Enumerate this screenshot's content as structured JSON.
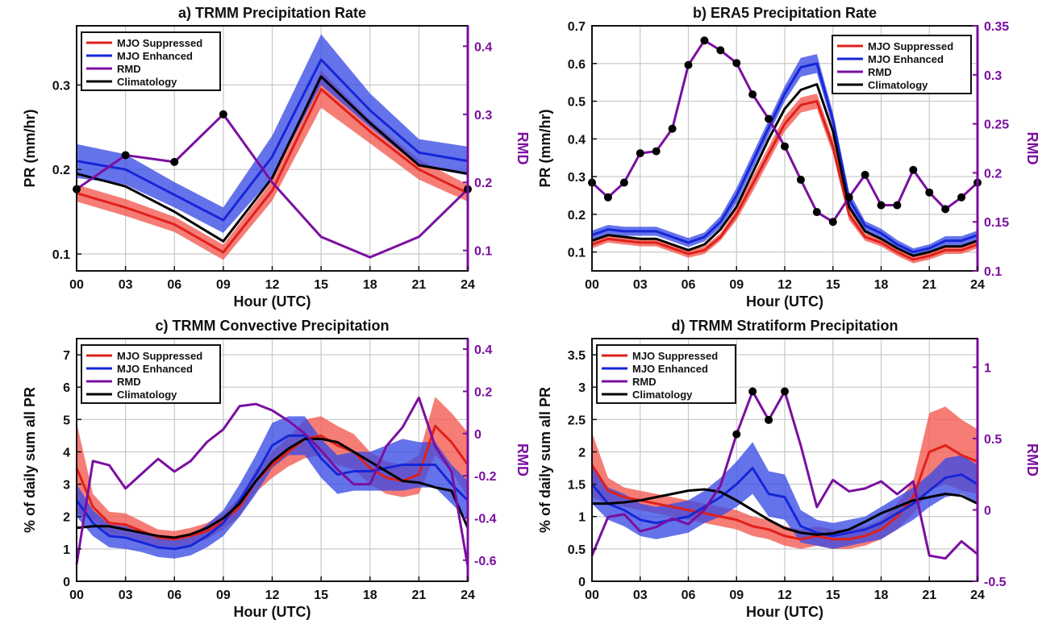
{
  "colors": {
    "suppressed": "#e0201a",
    "suppressed_band": "#f2584f",
    "enhanced": "#1626d6",
    "enhanced_band": "#3a4be6",
    "rmd": "#7b0fa0",
    "climatology": "#000000",
    "grid": "#c8c8c8"
  },
  "chart_data": [
    {
      "id": "a",
      "type": "line",
      "title": "a) TRMM Precipitation Rate",
      "xlabel": "Hour (UTC)",
      "ylabel": "PR (mm/hr)",
      "ylabel_right": "RMD",
      "xlim": [
        0,
        24
      ],
      "ylim": [
        0.08,
        0.37
      ],
      "ylim_right": [
        0.07,
        0.43
      ],
      "xticks": [
        0,
        3,
        6,
        9,
        12,
        15,
        18,
        21,
        24
      ],
      "xticklabels": [
        "00",
        "03",
        "06",
        "09",
        "12",
        "15",
        "18",
        "21",
        "24"
      ],
      "yticks": [
        0.1,
        0.2,
        0.3
      ],
      "yticklabels": [
        "0.1",
        "0.2",
        "0.3"
      ],
      "yticks_right": [
        0.1,
        0.2,
        0.3,
        0.4
      ],
      "yticklabels_right": [
        "0.1",
        "0.2",
        "0.3",
        "0.4"
      ],
      "legend": [
        "MJO Suppressed",
        "MJO Enhanced",
        "RMD",
        "Climatology"
      ],
      "legend_position": "top-left",
      "grid": true,
      "x": [
        0,
        3,
        6,
        9,
        12,
        15,
        18,
        21,
        24
      ],
      "series": [
        {
          "name": "MJO Suppressed",
          "values": [
            0.172,
            0.155,
            0.135,
            0.102,
            0.175,
            0.295,
            0.245,
            0.2,
            0.172
          ],
          "band": [
            0.01,
            0.01,
            0.009,
            0.009,
            0.012,
            0.022,
            0.014,
            0.012,
            0.01
          ]
        },
        {
          "name": "MJO Enhanced",
          "values": [
            0.21,
            0.2,
            0.17,
            0.14,
            0.215,
            0.33,
            0.27,
            0.22,
            0.21
          ],
          "band": [
            0.02,
            0.018,
            0.015,
            0.015,
            0.025,
            0.03,
            0.02,
            0.016,
            0.017
          ]
        },
        {
          "name": "RMD",
          "axis": "right",
          "values": [
            0.19,
            0.24,
            0.23,
            0.3,
            0.2,
            0.12,
            0.09,
            0.12,
            0.19
          ],
          "markers": [
            0,
            3,
            6,
            9,
            24
          ]
        },
        {
          "name": "Climatology",
          "values": [
            0.195,
            0.18,
            0.15,
            0.115,
            0.19,
            0.31,
            0.255,
            0.205,
            0.195
          ]
        }
      ]
    },
    {
      "id": "b",
      "type": "line",
      "title": "b) ERA5 Precipitation Rate",
      "xlabel": "Hour (UTC)",
      "ylabel": "PR (mm/hr)",
      "ylabel_right": "RMD",
      "xlim": [
        0,
        24
      ],
      "ylim": [
        0.05,
        0.7
      ],
      "ylim_right": [
        0.1,
        0.35
      ],
      "xticks": [
        0,
        3,
        6,
        9,
        12,
        15,
        18,
        21,
        24
      ],
      "xticklabels": [
        "00",
        "03",
        "06",
        "09",
        "12",
        "15",
        "18",
        "21",
        "24"
      ],
      "yticks": [
        0.1,
        0.2,
        0.3,
        0.4,
        0.5,
        0.6,
        0.7
      ],
      "yticklabels": [
        "0.1",
        "0.2",
        "0.3",
        "0.4",
        "0.5",
        "0.6",
        "0.7"
      ],
      "yticks_right": [
        0.1,
        0.15,
        0.2,
        0.25,
        0.3,
        0.35
      ],
      "yticklabels_right": [
        "0.1",
        "0.15",
        "0.2",
        "0.25",
        "0.3",
        "0.35"
      ],
      "legend": [
        "MJO Suppressed",
        "MJO Enhanced",
        "RMD",
        "Climatology"
      ],
      "legend_position": "top-right",
      "grid": true,
      "x": [
        0,
        1,
        2,
        3,
        4,
        5,
        6,
        7,
        8,
        9,
        10,
        11,
        12,
        13,
        14,
        15,
        16,
        17,
        18,
        19,
        20,
        21,
        22,
        23,
        24
      ],
      "series": [
        {
          "name": "MJO Suppressed",
          "values": [
            0.12,
            0.135,
            0.13,
            0.125,
            0.125,
            0.11,
            0.095,
            0.105,
            0.14,
            0.2,
            0.28,
            0.36,
            0.44,
            0.49,
            0.5,
            0.38,
            0.2,
            0.14,
            0.125,
            0.1,
            0.08,
            0.09,
            0.105,
            0.105,
            0.12
          ],
          "band": [
            0.01,
            0.01,
            0.01,
            0.01,
            0.01,
            0.01,
            0.01,
            0.01,
            0.01,
            0.015,
            0.02,
            0.02,
            0.02,
            0.02,
            0.02,
            0.02,
            0.015,
            0.01,
            0.01,
            0.01,
            0.01,
            0.01,
            0.01,
            0.01,
            0.01
          ]
        },
        {
          "name": "MJO Enhanced",
          "values": [
            0.145,
            0.16,
            0.155,
            0.155,
            0.155,
            0.14,
            0.125,
            0.14,
            0.18,
            0.25,
            0.34,
            0.43,
            0.52,
            0.59,
            0.6,
            0.45,
            0.24,
            0.17,
            0.15,
            0.12,
            0.1,
            0.11,
            0.13,
            0.13,
            0.145
          ],
          "band": [
            0.012,
            0.012,
            0.012,
            0.012,
            0.012,
            0.012,
            0.012,
            0.012,
            0.015,
            0.02,
            0.02,
            0.02,
            0.02,
            0.025,
            0.025,
            0.02,
            0.02,
            0.012,
            0.012,
            0.012,
            0.01,
            0.01,
            0.012,
            0.012,
            0.012
          ]
        },
        {
          "name": "RMD",
          "axis": "right",
          "values": [
            0.19,
            0.175,
            0.19,
            0.22,
            0.222,
            0.245,
            0.31,
            0.335,
            0.325,
            0.312,
            0.28,
            0.255,
            0.227,
            0.193,
            0.16,
            0.15,
            0.175,
            0.198,
            0.167,
            0.167,
            0.203,
            0.18,
            0.163,
            0.175,
            0.19
          ],
          "markers": [
            0,
            1,
            2,
            3,
            4,
            5,
            6,
            7,
            8,
            9,
            10,
            11,
            12,
            13,
            14,
            15,
            16,
            17,
            18,
            19,
            20,
            21,
            22,
            23,
            24
          ]
        },
        {
          "name": "Climatology",
          "values": [
            0.13,
            0.145,
            0.14,
            0.135,
            0.135,
            0.12,
            0.105,
            0.12,
            0.16,
            0.22,
            0.31,
            0.4,
            0.48,
            0.53,
            0.545,
            0.42,
            0.22,
            0.155,
            0.135,
            0.11,
            0.09,
            0.1,
            0.115,
            0.115,
            0.13
          ]
        }
      ]
    },
    {
      "id": "c",
      "type": "line",
      "title": "c) TRMM Convective Precipitation",
      "xlabel": "Hour (UTC)",
      "ylabel": "% of daily sum all PR",
      "ylabel_right": "RMD",
      "xlim": [
        0,
        24
      ],
      "ylim": [
        0,
        7.5
      ],
      "ylim_right": [
        -0.7,
        0.45
      ],
      "xticks": [
        0,
        3,
        6,
        9,
        12,
        15,
        18,
        21,
        24
      ],
      "xticklabels": [
        "00",
        "03",
        "06",
        "09",
        "12",
        "15",
        "18",
        "21",
        "24"
      ],
      "yticks": [
        0,
        1,
        2,
        3,
        4,
        5,
        6,
        7
      ],
      "yticklabels": [
        "0",
        "1",
        "2",
        "3",
        "4",
        "5",
        "6",
        "7"
      ],
      "yticks_right": [
        -0.6,
        -0.4,
        -0.2,
        0,
        0.2,
        0.4
      ],
      "yticklabels_right": [
        "-0.6",
        "-0.4",
        "-0.2",
        "0",
        "0.2",
        "0.4"
      ],
      "legend": [
        "MJO Suppressed",
        "MJO Enhanced",
        "RMD",
        "Climatology"
      ],
      "legend_position": "top-left",
      "grid": true,
      "x": [
        0,
        1,
        2,
        3,
        4,
        5,
        6,
        7,
        8,
        9,
        10,
        11,
        12,
        13,
        14,
        15,
        16,
        17,
        18,
        19,
        20,
        21,
        22,
        23,
        24
      ],
      "series": [
        {
          "name": "MJO Suppressed",
          "values": [
            3.5,
            2.3,
            1.8,
            1.75,
            1.55,
            1.35,
            1.3,
            1.4,
            1.55,
            1.85,
            2.3,
            3.1,
            3.6,
            4.0,
            4.4,
            4.5,
            4.2,
            4.0,
            3.5,
            3.2,
            3.1,
            3.3,
            4.8,
            4.3,
            3.6
          ],
          "band": [
            1.4,
            0.4,
            0.35,
            0.35,
            0.3,
            0.25,
            0.25,
            0.25,
            0.25,
            0.25,
            0.3,
            0.35,
            0.4,
            0.45,
            0.6,
            0.6,
            0.6,
            0.55,
            0.5,
            0.5,
            0.5,
            0.6,
            0.9,
            0.9,
            1.0
          ]
        },
        {
          "name": "MJO Enhanced",
          "values": [
            2.5,
            1.8,
            1.4,
            1.35,
            1.2,
            1.05,
            1.0,
            1.1,
            1.4,
            1.8,
            2.5,
            3.3,
            4.2,
            4.5,
            4.5,
            3.8,
            3.3,
            3.4,
            3.4,
            3.5,
            3.6,
            3.6,
            3.6,
            3.0,
            2.5
          ],
          "band": [
            0.5,
            0.4,
            0.35,
            0.35,
            0.3,
            0.3,
            0.3,
            0.3,
            0.35,
            0.4,
            0.5,
            0.6,
            0.7,
            0.6,
            0.6,
            0.6,
            0.6,
            0.6,
            0.6,
            0.7,
            0.8,
            0.7,
            0.7,
            0.6,
            0.6
          ]
        },
        {
          "name": "RMD",
          "axis": "right",
          "values": [
            -0.62,
            -0.13,
            -0.15,
            -0.26,
            -0.19,
            -0.12,
            -0.18,
            -0.13,
            -0.04,
            0.02,
            0.13,
            0.14,
            0.11,
            0.06,
            0.0,
            -0.08,
            -0.17,
            -0.24,
            -0.24,
            -0.06,
            0.03,
            0.17,
            -0.06,
            -0.18,
            -0.63
          ]
        },
        {
          "name": "Climatology",
          "values": [
            1.65,
            1.7,
            1.7,
            1.6,
            1.5,
            1.4,
            1.35,
            1.45,
            1.65,
            1.95,
            2.4,
            3.1,
            3.7,
            4.1,
            4.4,
            4.4,
            4.3,
            4.0,
            3.7,
            3.4,
            3.1,
            3.05,
            2.9,
            2.8,
            1.65
          ]
        }
      ]
    },
    {
      "id": "d",
      "type": "line",
      "title": "d) TRMM Stratiform Precipitation",
      "xlabel": "Hour (UTC)",
      "ylabel": "% of daily sum all PR",
      "ylabel_right": "RMD",
      "xlim": [
        0,
        24
      ],
      "ylim": [
        0,
        3.75
      ],
      "ylim_right": [
        -0.5,
        1.2
      ],
      "xticks": [
        0,
        3,
        6,
        9,
        12,
        15,
        18,
        21,
        24
      ],
      "xticklabels": [
        "00",
        "03",
        "06",
        "09",
        "12",
        "15",
        "18",
        "21",
        "24"
      ],
      "yticks": [
        0,
        0.5,
        1,
        1.5,
        2,
        2.5,
        3,
        3.5
      ],
      "yticklabels": [
        "0",
        "0.5",
        "1",
        "1.5",
        "2",
        "2.5",
        "3",
        "3.5"
      ],
      "yticks_right": [
        -0.5,
        0,
        0.5,
        1
      ],
      "yticklabels_right": [
        "-0.5",
        "0",
        "0.5",
        "1"
      ],
      "legend": [
        "MJO Suppressed",
        "MJO Enhanced",
        "RMD",
        "Climatology"
      ],
      "legend_position": "top-left",
      "grid": true,
      "x": [
        0,
        1,
        2,
        3,
        4,
        5,
        6,
        7,
        8,
        9,
        10,
        11,
        12,
        13,
        14,
        15,
        16,
        17,
        18,
        19,
        20,
        21,
        22,
        23,
        24
      ],
      "series": [
        {
          "name": "MJO Suppressed",
          "values": [
            1.8,
            1.4,
            1.3,
            1.25,
            1.2,
            1.15,
            1.1,
            1.05,
            1.0,
            0.95,
            0.85,
            0.8,
            0.7,
            0.65,
            0.7,
            0.65,
            0.65,
            0.7,
            0.8,
            1.0,
            1.3,
            2.0,
            2.1,
            1.95,
            1.85
          ],
          "band": [
            0.5,
            0.2,
            0.15,
            0.15,
            0.15,
            0.15,
            0.15,
            0.15,
            0.15,
            0.15,
            0.15,
            0.15,
            0.15,
            0.15,
            0.15,
            0.15,
            0.15,
            0.15,
            0.15,
            0.2,
            0.25,
            0.6,
            0.6,
            0.55,
            0.5
          ]
        },
        {
          "name": "MJO Enhanced",
          "values": [
            1.5,
            1.2,
            1.1,
            0.95,
            0.9,
            0.95,
            1.0,
            1.15,
            1.3,
            1.5,
            1.75,
            1.35,
            1.3,
            0.85,
            0.75,
            0.7,
            0.75,
            0.8,
            0.9,
            1.05,
            1.2,
            1.4,
            1.6,
            1.65,
            1.5
          ],
          "band": [
            0.3,
            0.25,
            0.25,
            0.25,
            0.25,
            0.25,
            0.25,
            0.25,
            0.3,
            0.35,
            0.4,
            0.35,
            0.35,
            0.25,
            0.2,
            0.2,
            0.2,
            0.2,
            0.25,
            0.25,
            0.25,
            0.25,
            0.3,
            0.3,
            0.3
          ]
        },
        {
          "name": "RMD",
          "axis": "right",
          "values": [
            -0.32,
            -0.05,
            -0.03,
            -0.15,
            -0.12,
            -0.06,
            -0.1,
            0.0,
            0.17,
            0.53,
            0.83,
            0.63,
            0.83,
            0.45,
            0.02,
            0.21,
            0.13,
            0.15,
            0.2,
            0.11,
            0.2,
            -0.32,
            -0.34,
            -0.22,
            -0.31
          ],
          "markers": [
            9,
            10,
            11,
            12
          ]
        },
        {
          "name": "Climatology",
          "values": [
            1.2,
            1.2,
            1.22,
            1.25,
            1.3,
            1.35,
            1.4,
            1.42,
            1.38,
            1.25,
            1.1,
            0.95,
            0.82,
            0.75,
            0.72,
            0.74,
            0.8,
            0.92,
            1.05,
            1.15,
            1.25,
            1.3,
            1.35,
            1.32,
            1.2
          ]
        }
      ]
    }
  ]
}
